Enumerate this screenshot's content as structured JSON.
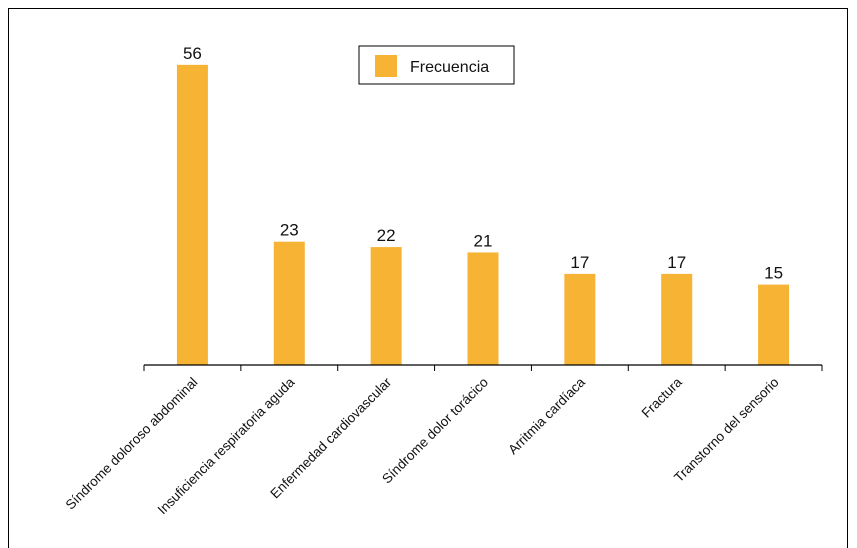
{
  "chart_data": {
    "type": "bar",
    "categories": [
      "Síndrome doloroso abdominal",
      "Insuficiencia respiratoria aguda",
      "Enfermedad cardiovascular",
      "Síndrome dolor torácico",
      "Arritmia cardíaca",
      "Fractura",
      "Transtorno del sensorio"
    ],
    "series": [
      {
        "name": "Frecuencia",
        "values": [
          56,
          23,
          22,
          21,
          17,
          17,
          15
        ]
      }
    ],
    "title": "",
    "xlabel": "",
    "ylabel": "",
    "ylim": [
      0,
      62
    ],
    "grid": false,
    "legend_position": "top-center",
    "data_labels": true,
    "colors": {
      "bar": "#F7B334",
      "axis": "#000000",
      "text": "#111111"
    }
  }
}
